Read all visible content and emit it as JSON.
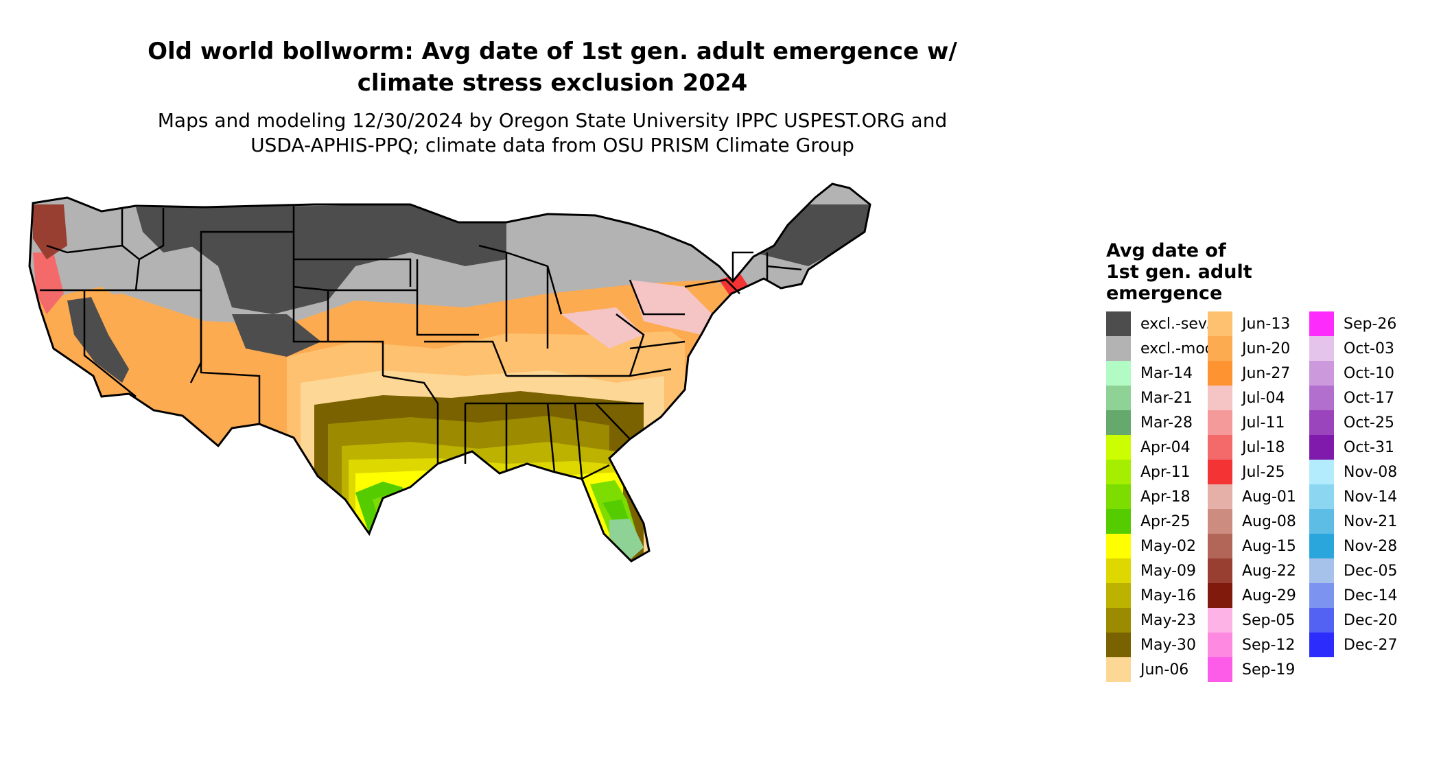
{
  "title": {
    "line1": "Old world bollworm: Avg date of 1st gen. adult emergence w/",
    "line2": "climate stress exclusion 2024"
  },
  "subtitle": {
    "line1": "Maps and modeling 12/30/2024 by Oregon State University IPPC USPEST.ORG and",
    "line2": "USDA-APHIS-PPQ; climate data from OSU PRISM Climate Group"
  },
  "legend": {
    "title_lines": [
      "Avg date of",
      "1st gen. adult",
      "emergence"
    ],
    "columns": [
      [
        {
          "label": "excl.-sev.",
          "color": "#4d4d4d"
        },
        {
          "label": "excl.-mod.",
          "color": "#b3b3b3"
        },
        {
          "label": "Mar-14",
          "color": "#b3fbc5"
        },
        {
          "label": "Mar-21",
          "color": "#8ed295"
        },
        {
          "label": "Mar-28",
          "color": "#66a96d"
        },
        {
          "label": "Apr-04",
          "color": "#ccfd00"
        },
        {
          "label": "Apr-11",
          "color": "#a5ee00"
        },
        {
          "label": "Apr-18",
          "color": "#7ddd00"
        },
        {
          "label": "Apr-25",
          "color": "#54cc00"
        },
        {
          "label": "May-02",
          "color": "#ffff00"
        },
        {
          "label": "May-09",
          "color": "#dfd800"
        },
        {
          "label": "May-16",
          "color": "#bdb200"
        },
        {
          "label": "May-23",
          "color": "#9c8a00"
        },
        {
          "label": "May-30",
          "color": "#7a6200"
        },
        {
          "label": "Jun-06",
          "color": "#fdd796"
        }
      ],
      [
        {
          "label": "Jun-13",
          "color": "#fdc170"
        },
        {
          "label": "Jun-20",
          "color": "#fdab51"
        },
        {
          "label": "Jun-27",
          "color": "#fd9431"
        },
        {
          "label": "Jul-04",
          "color": "#f5c4c4"
        },
        {
          "label": "Jul-11",
          "color": "#f49a9a"
        },
        {
          "label": "Jul-18",
          "color": "#f46a6a"
        },
        {
          "label": "Jul-25",
          "color": "#f43434"
        },
        {
          "label": "Aug-01",
          "color": "#e5b0a8"
        },
        {
          "label": "Aug-08",
          "color": "#cc8c80"
        },
        {
          "label": "Aug-15",
          "color": "#b26658"
        },
        {
          "label": "Aug-22",
          "color": "#993f32"
        },
        {
          "label": "Aug-29",
          "color": "#801a0c"
        },
        {
          "label": "Sep-05",
          "color": "#fdb3e5"
        },
        {
          "label": "Sep-12",
          "color": "#fd8ae0"
        },
        {
          "label": "Sep-19",
          "color": "#fd5ce8"
        }
      ],
      [
        {
          "label": "Sep-26",
          "color": "#fd2cfc"
        },
        {
          "label": "Oct-03",
          "color": "#e5c4ec"
        },
        {
          "label": "Oct-10",
          "color": "#cc99dd"
        },
        {
          "label": "Oct-17",
          "color": "#b36fcd"
        },
        {
          "label": "Oct-25",
          "color": "#9a45bc"
        },
        {
          "label": "Oct-31",
          "color": "#801aac"
        },
        {
          "label": "Nov-08",
          "color": "#b3ecfd"
        },
        {
          "label": "Nov-14",
          "color": "#8dd6f2"
        },
        {
          "label": "Nov-21",
          "color": "#5dbde4"
        },
        {
          "label": "Nov-28",
          "color": "#2ba6dd"
        },
        {
          "label": "Dec-05",
          "color": "#a6c2ea"
        },
        {
          "label": "Dec-14",
          "color": "#7c94ef"
        },
        {
          "label": "Dec-20",
          "color": "#5462f4"
        },
        {
          "label": "Dec-27",
          "color": "#2c2cfc"
        }
      ]
    ]
  }
}
